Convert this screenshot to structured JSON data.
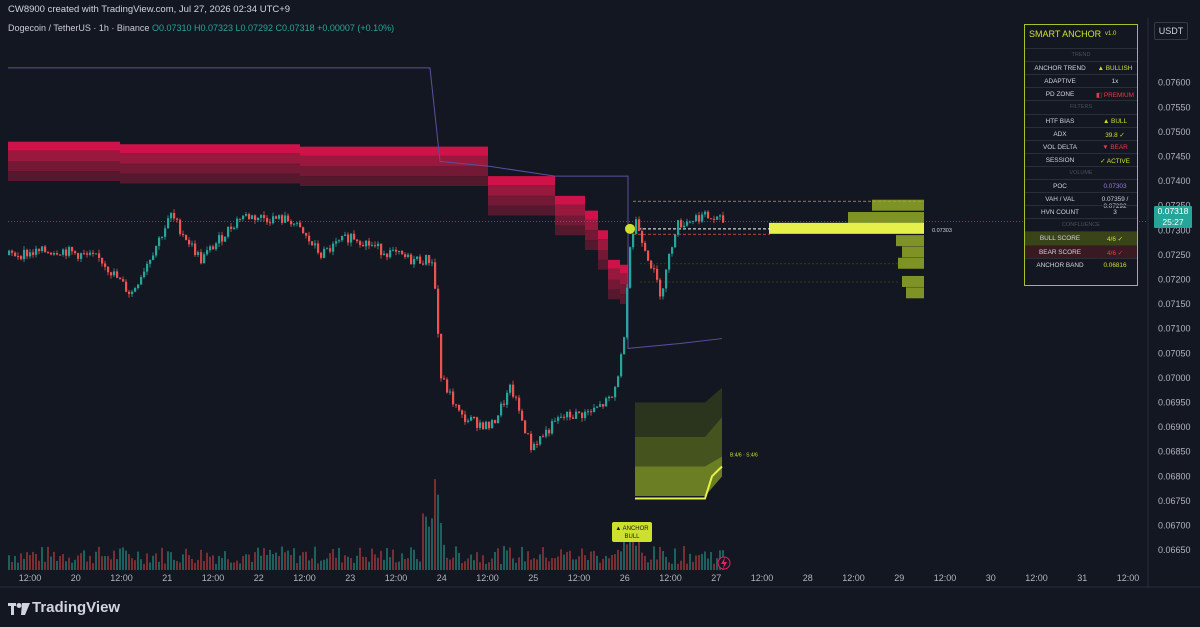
{
  "header": {
    "created": "CW8900 created with TradingView.com, Jul 27, 2026 02:34 UTC+9",
    "symbol": "Dogecoin / TetherUS · 1h · Binance",
    "ohlc": "O0.07310 H0.07323 L0.07292 C0.07318 +0.00007 (+0.10%)"
  },
  "currency_button": "USDT",
  "footer": {
    "logo_text": "TradingView"
  },
  "price_badge": {
    "price": "0.07318",
    "countdown": "25:27"
  },
  "poc_label": "0.07303",
  "anchor_tag": {
    "line1": "▲ ANCHOR",
    "line2": "BULL"
  },
  "score_note": "B:4/6 · S:4/6",
  "panel": {
    "title": "SMART ANCHOR",
    "version": "v1.0",
    "rows": [
      {
        "kind": "section",
        "label": "TREND"
      },
      {
        "kind": "row",
        "label": "ANCHOR TREND",
        "value": "▲ BULLISH",
        "color": "#cde02e"
      },
      {
        "kind": "row",
        "label": "ADAPTIVE",
        "value": "1x",
        "color": "#d1d4dc"
      },
      {
        "kind": "row",
        "label": "PD ZONE",
        "value": "◧ PREMIUM",
        "color": "#f23645"
      },
      {
        "kind": "section",
        "label": "FILTERS"
      },
      {
        "kind": "row",
        "label": "HTF BIAS",
        "value": "▲ BULL",
        "color": "#cde02e"
      },
      {
        "kind": "row",
        "label": "ADX",
        "value": "39.8 ✓",
        "color": "#cde02e"
      },
      {
        "kind": "row",
        "label": "VOL DELTA",
        "value": "▼ BEAR",
        "color": "#f23645"
      },
      {
        "kind": "row",
        "label": "SESSION",
        "value": "✓ ACTIVE",
        "color": "#cde02e"
      },
      {
        "kind": "section",
        "label": "VOLUME"
      },
      {
        "kind": "row",
        "label": "POC",
        "value": "0.07303",
        "color": "#9b7bd8"
      },
      {
        "kind": "row",
        "label": "VAH / VAL",
        "value": "0.07359 / 0.07292",
        "color": "#d1d4dc"
      },
      {
        "kind": "row",
        "label": "HVN COUNT",
        "value": "3",
        "color": "#d1d4dc"
      },
      {
        "kind": "section",
        "label": "CONFLUENCE"
      },
      {
        "kind": "row",
        "label": "BULL SCORE",
        "value": "4/6 ✓",
        "color": "#cde02e",
        "bg": "#3a4418"
      },
      {
        "kind": "row",
        "label": "BEAR SCORE",
        "value": "4/6 ✓",
        "color": "#f23645",
        "bg": "#3a1a22"
      },
      {
        "kind": "row",
        "label": "ANCHOR BAND",
        "value": "0.06816",
        "color": "#cde02e"
      }
    ]
  },
  "chart_data": {
    "type": "candlestick",
    "symbol": "DOGEUSDT",
    "timeframe": "1h",
    "y_axis_ticks": [
      "0.07600",
      "0.07550",
      "0.07500",
      "0.07450",
      "0.07400",
      "0.07350",
      "0.07300",
      "0.07250",
      "0.07200",
      "0.07150",
      "0.07100",
      "0.07050",
      "0.07000",
      "0.06950",
      "0.06900",
      "0.06850",
      "0.06800",
      "0.06750",
      "0.06700",
      "0.06650"
    ],
    "ylim": [
      0.0663,
      0.0764
    ],
    "x_axis_ticks": [
      "12:00",
      "20",
      "12:00",
      "21",
      "12:00",
      "22",
      "12:00",
      "23",
      "12:00",
      "24",
      "12:00",
      "25",
      "12:00",
      "26",
      "12:00",
      "27",
      "12:00",
      "28",
      "12:00",
      "29",
      "12:00",
      "30",
      "12:00",
      "31",
      "12:00"
    ],
    "key_levels": {
      "poc": 0.07303,
      "vah": 0.07359,
      "val": 0.07292,
      "last": 0.07318,
      "anchor_band": 0.06816
    },
    "colors": {
      "up": "#26a69a",
      "down": "#ef5350",
      "accent": "#cde02e",
      "band": "#c2185b"
    }
  }
}
